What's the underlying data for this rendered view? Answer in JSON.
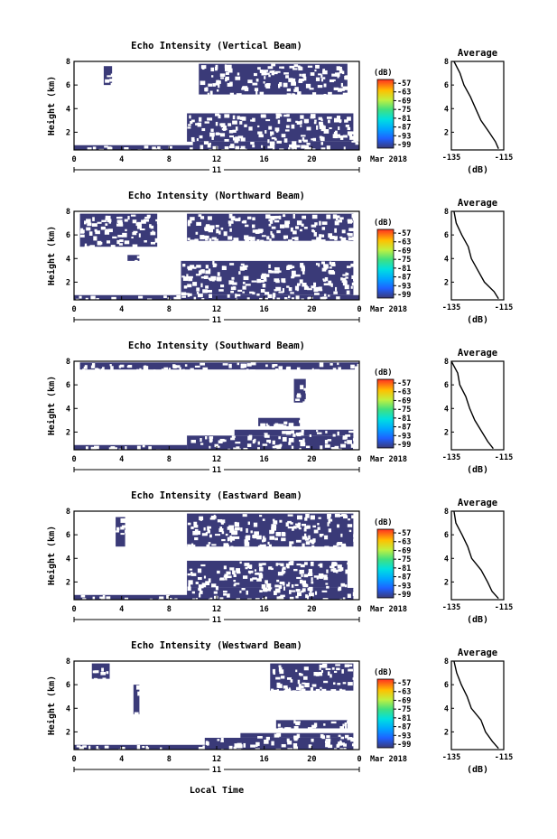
{
  "figure": {
    "date_label": "Mar 2018",
    "day_label": "11",
    "xlabel_bottom": "Local Time",
    "cbar_unit": "(dB)",
    "cbar_ticks": [
      "-57",
      "-63",
      "-69",
      "-75",
      "-81",
      "-87",
      "-93",
      "-99"
    ],
    "avg_title": "Average",
    "avg_xlabel": "(dB)",
    "avg_xticks": [
      "-135",
      "-115"
    ],
    "time_ticks": [
      "0",
      "4",
      "8",
      "12",
      "16",
      "20",
      "0"
    ],
    "height_ticks": [
      "2",
      "4",
      "6",
      "8"
    ],
    "ylabel": "Height (km)",
    "echo_color": "#3a3a78"
  },
  "chart_data": [
    {
      "type": "heatmap",
      "title": "Echo Intensity (Vertical Beam)",
      "xlabel": "",
      "ylabel": "Height (km)",
      "xlim_hours": [
        0,
        24
      ],
      "ylim_km": [
        0.5,
        8
      ],
      "echo_blocks": [
        {
          "t0": 0.0,
          "t1": 10.0,
          "h0": 0.5,
          "h1": 0.9
        },
        {
          "t0": 10.0,
          "t1": 24.0,
          "h0": 0.5,
          "h1": 1.2
        },
        {
          "t0": 9.5,
          "t1": 23.5,
          "h0": 1.2,
          "h1": 3.6
        },
        {
          "t0": 10.5,
          "t1": 23.0,
          "h0": 5.2,
          "h1": 7.8
        },
        {
          "t0": 2.5,
          "t1": 3.2,
          "h0": 6.0,
          "h1": 7.6
        }
      ],
      "average_profile": {
        "x_db": [
          -117,
          -118,
          -121,
          -124,
          -126,
          -128,
          -130,
          -132,
          -134
        ],
        "h_km": [
          0.6,
          1.2,
          2.0,
          3.0,
          4.0,
          5.0,
          6.0,
          7.0,
          8.0
        ],
        "xlim": [
          -135,
          -115
        ]
      }
    },
    {
      "type": "heatmap",
      "title": "Echo Intensity (Northward Beam)",
      "xlabel": "",
      "ylabel": "Height (km)",
      "xlim_hours": [
        0,
        24
      ],
      "ylim_km": [
        0.5,
        8
      ],
      "echo_blocks": [
        {
          "t0": 0.0,
          "t1": 24.0,
          "h0": 0.5,
          "h1": 0.9
        },
        {
          "t0": 9.0,
          "t1": 23.5,
          "h0": 0.9,
          "h1": 3.8
        },
        {
          "t0": 9.5,
          "t1": 23.5,
          "h0": 5.5,
          "h1": 7.8
        },
        {
          "t0": 0.5,
          "t1": 7.0,
          "h0": 5.0,
          "h1": 7.8
        },
        {
          "t0": 4.5,
          "t1": 5.5,
          "h0": 3.8,
          "h1": 4.3
        }
      ],
      "average_profile": {
        "x_db": [
          -117,
          -119,
          -122,
          -125,
          -127,
          -129,
          -131,
          -133,
          -134
        ],
        "h_km": [
          0.6,
          1.2,
          2.0,
          3.0,
          4.0,
          5.0,
          6.0,
          7.0,
          8.0
        ],
        "xlim": [
          -135,
          -115
        ]
      }
    },
    {
      "type": "heatmap",
      "title": "Echo Intensity (Southward Beam)",
      "xlabel": "",
      "ylabel": "Height (km)",
      "xlim_hours": [
        0,
        24
      ],
      "ylim_km": [
        0.5,
        8
      ],
      "echo_blocks": [
        {
          "t0": 0.0,
          "t1": 9.5,
          "h0": 0.5,
          "h1": 0.9
        },
        {
          "t0": 9.5,
          "t1": 23.5,
          "h0": 0.5,
          "h1": 1.7
        },
        {
          "t0": 13.5,
          "t1": 23.5,
          "h0": 1.7,
          "h1": 2.2
        },
        {
          "t0": 15.5,
          "t1": 19.0,
          "h0": 2.5,
          "h1": 3.2
        },
        {
          "t0": 18.5,
          "t1": 19.5,
          "h0": 4.5,
          "h1": 6.5
        },
        {
          "t0": 0.5,
          "t1": 24.0,
          "h0": 7.3,
          "h1": 7.9
        }
      ],
      "average_profile": {
        "x_db": [
          -119,
          -121,
          -123,
          -126,
          -128,
          -130,
          -132,
          -133,
          -135
        ],
        "h_km": [
          0.6,
          1.2,
          2.0,
          3.0,
          4.0,
          5.0,
          6.0,
          7.0,
          8.0
        ],
        "xlim": [
          -135,
          -115
        ]
      }
    },
    {
      "type": "heatmap",
      "title": "Echo Intensity (Eastward Beam)",
      "xlabel": "",
      "ylabel": "Height (km)",
      "xlim_hours": [
        0,
        24
      ],
      "ylim_km": [
        0.5,
        8
      ],
      "echo_blocks": [
        {
          "t0": 0.0,
          "t1": 10.0,
          "h0": 0.5,
          "h1": 0.9
        },
        {
          "t0": 9.5,
          "t1": 23.5,
          "h0": 0.5,
          "h1": 1.5
        },
        {
          "t0": 9.5,
          "t1": 23.0,
          "h0": 1.5,
          "h1": 3.8
        },
        {
          "t0": 9.5,
          "t1": 23.5,
          "h0": 5.0,
          "h1": 7.8
        },
        {
          "t0": 3.5,
          "t1": 4.3,
          "h0": 5.0,
          "h1": 7.5
        }
      ],
      "average_profile": {
        "x_db": [
          -117,
          -119,
          -121,
          -124,
          -127,
          -129,
          -131,
          -133,
          -134
        ],
        "h_km": [
          0.6,
          1.2,
          2.0,
          3.0,
          4.0,
          5.0,
          6.0,
          7.0,
          8.0
        ],
        "xlim": [
          -135,
          -115
        ]
      }
    },
    {
      "type": "heatmap",
      "title": "Echo Intensity (Westward Beam)",
      "xlabel": "Local Time",
      "ylabel": "Height (km)",
      "xlim_hours": [
        0,
        24
      ],
      "ylim_km": [
        0.5,
        8
      ],
      "echo_blocks": [
        {
          "t0": 0.0,
          "t1": 11.0,
          "h0": 0.5,
          "h1": 0.9
        },
        {
          "t0": 11.0,
          "t1": 23.5,
          "h0": 0.5,
          "h1": 1.5
        },
        {
          "t0": 14.0,
          "t1": 23.5,
          "h0": 1.5,
          "h1": 1.9
        },
        {
          "t0": 17.0,
          "t1": 23.0,
          "h0": 2.3,
          "h1": 3.0
        },
        {
          "t0": 16.5,
          "t1": 23.5,
          "h0": 5.5,
          "h1": 7.8
        },
        {
          "t0": 1.5,
          "t1": 3.0,
          "h0": 6.5,
          "h1": 7.8
        },
        {
          "t0": 5.0,
          "t1": 5.5,
          "h0": 3.5,
          "h1": 6.0
        }
      ],
      "average_profile": {
        "x_db": [
          -117,
          -119,
          -122,
          -124,
          -127,
          -129,
          -131,
          -133,
          -134
        ],
        "h_km": [
          0.6,
          1.2,
          2.0,
          3.0,
          4.0,
          5.0,
          6.0,
          7.0,
          8.0
        ],
        "xlim": [
          -135,
          -115
        ]
      }
    }
  ]
}
